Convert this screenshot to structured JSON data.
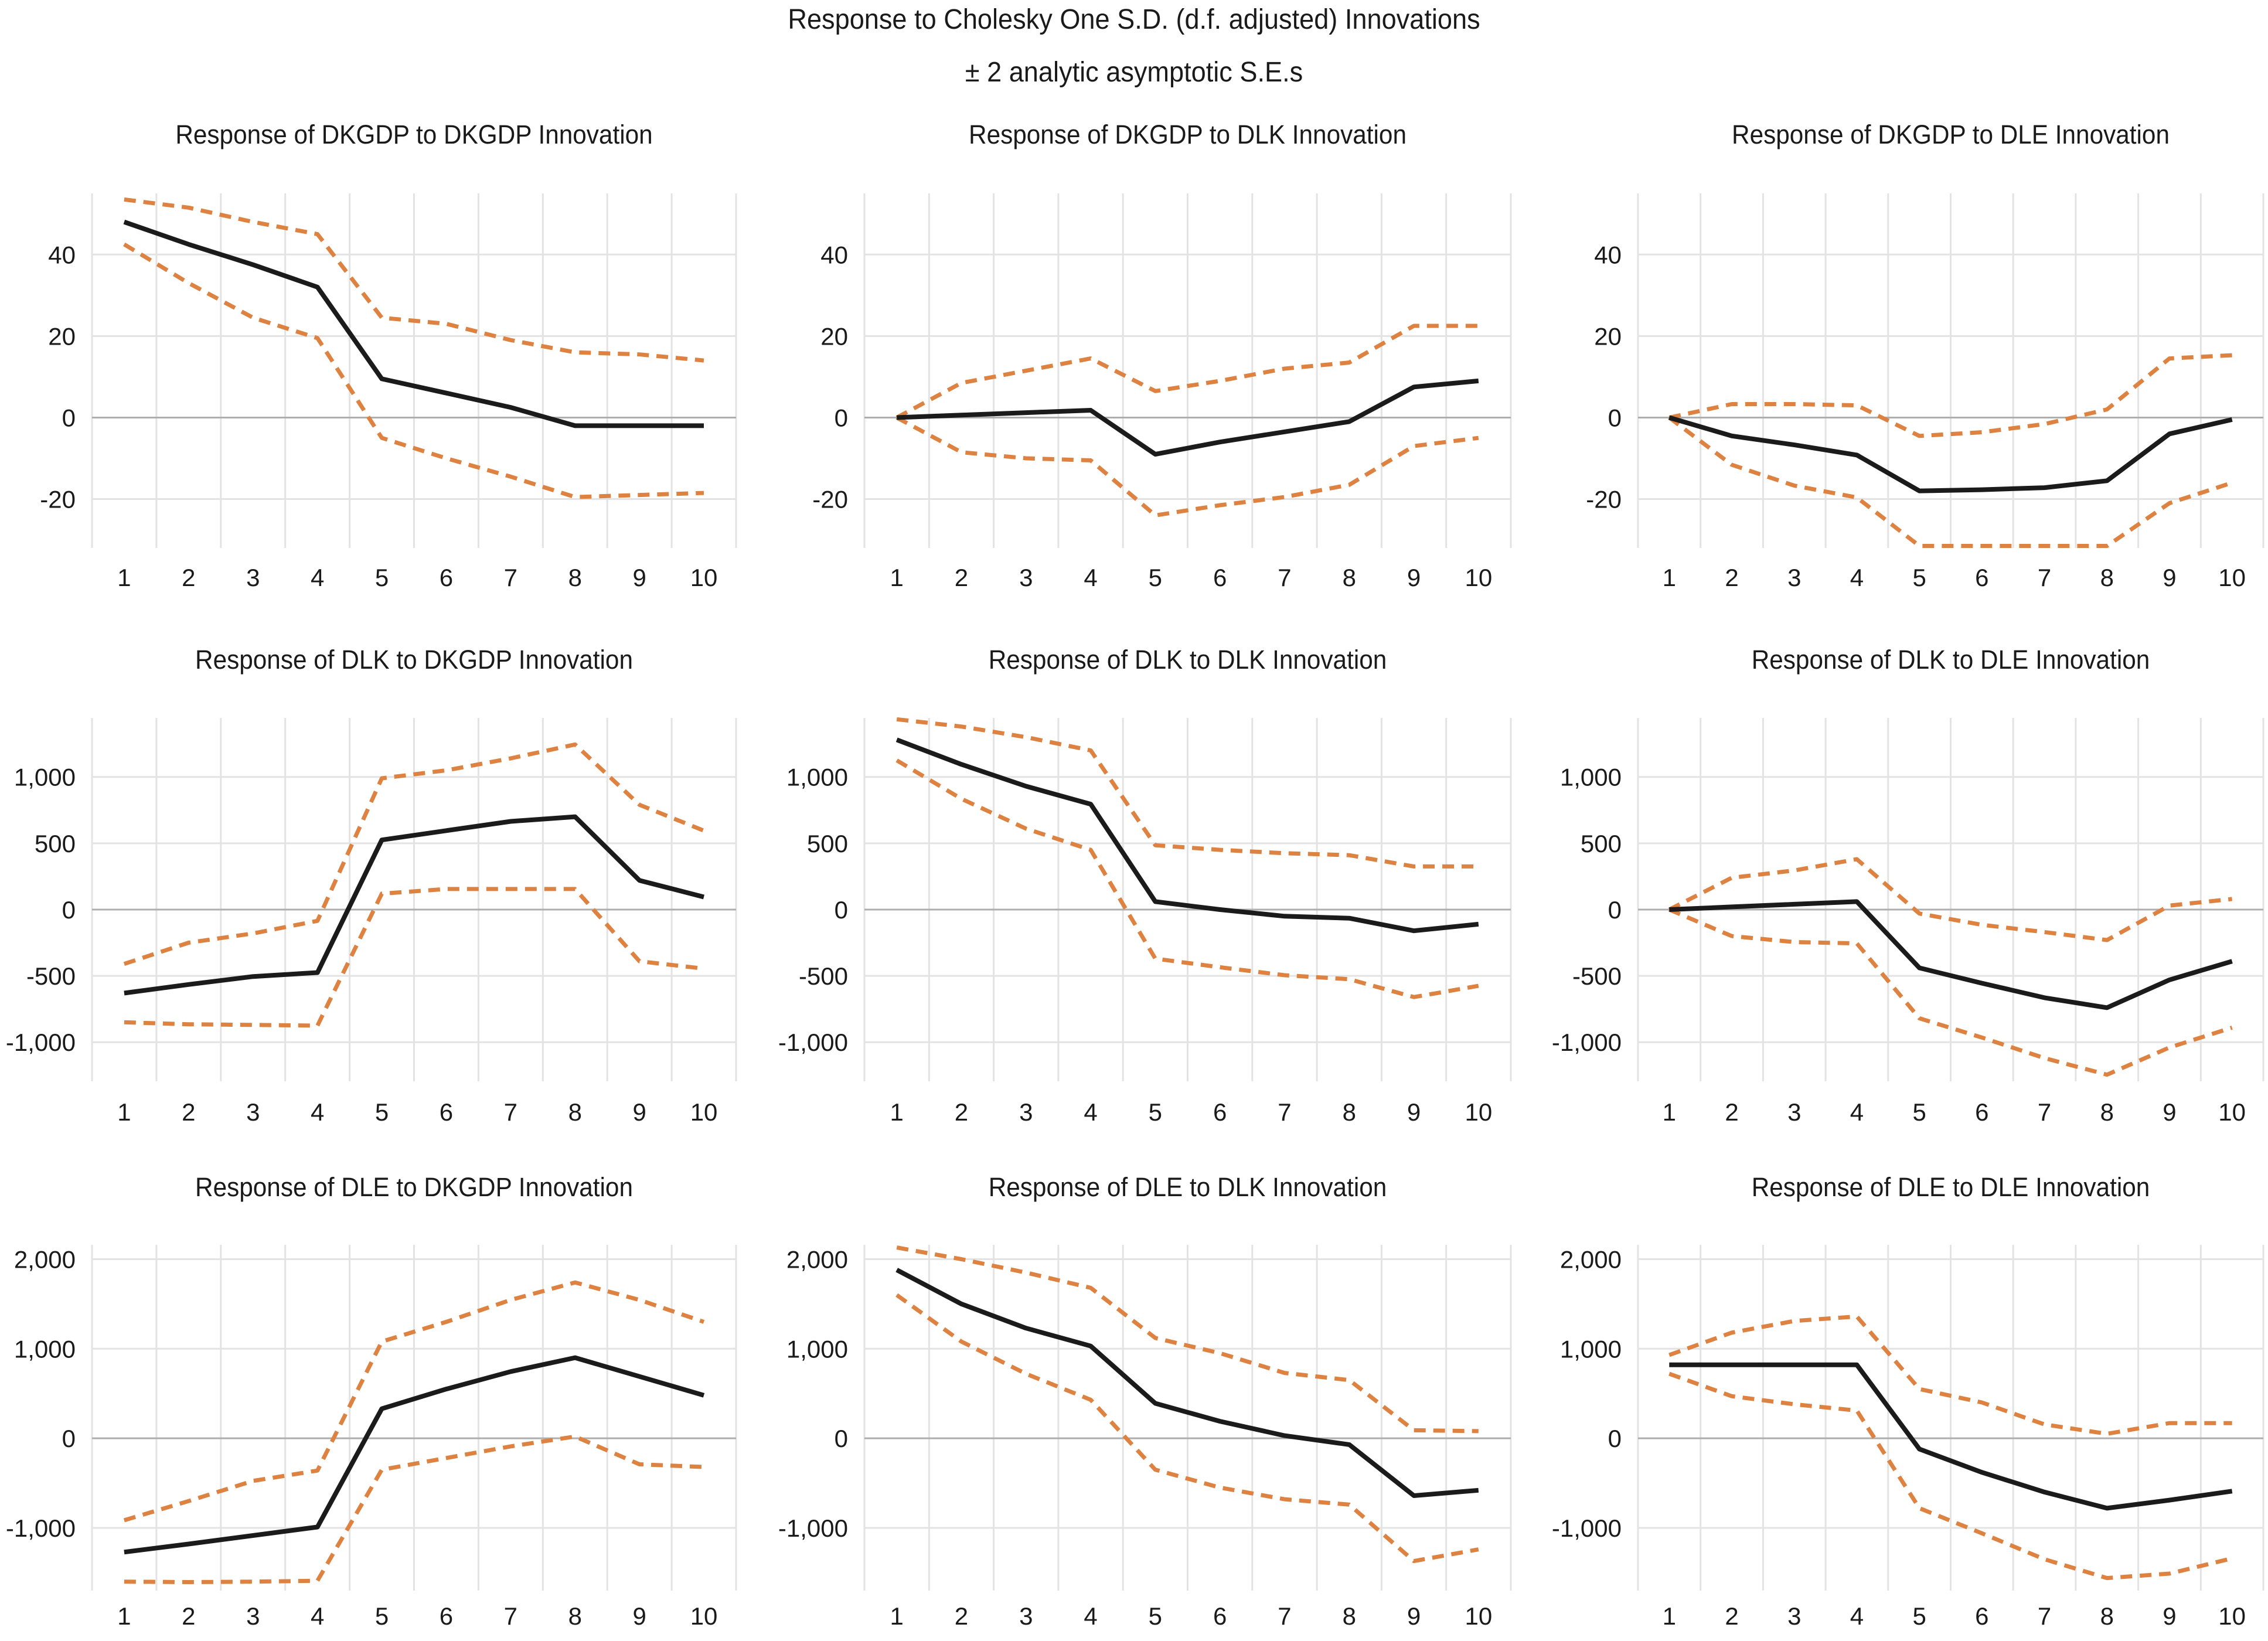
{
  "title": {
    "line1": "Response to Cholesky One S.D. (d.f. adjusted) Innovations",
    "line2": "± 2 analytic asymptotic S.E.s"
  },
  "colors": {
    "mean_line": "#1b1b1b",
    "band_line": "#dd8240",
    "gridline": "#e3e3e3",
    "zero_line": "#aeaeae",
    "background": "#ffffff",
    "text": "#1a1a1a"
  },
  "chart_data": {
    "type": "line",
    "x": [
      1,
      2,
      3,
      4,
      5,
      6,
      7,
      8,
      9,
      10
    ],
    "legend": "none",
    "grid": "on",
    "band_style": "dashed",
    "charts": [
      {
        "title": "Response of DKGDP to DKGDP Innovation",
        "ylim": [
          -32,
          55
        ],
        "ytick_values": [
          40,
          20,
          0,
          -20
        ],
        "ytick_labels": [
          "40",
          "20",
          "0",
          "-20"
        ],
        "series": [
          {
            "name": "response",
            "values": [
              48,
              42.5,
              37.5,
              32,
              9.5,
              6,
              2.5,
              -2,
              -2,
              -2
            ]
          },
          {
            "name": "upper_band",
            "values": [
              53.5,
              51.5,
              48,
              45,
              24.5,
              23,
              19,
              16,
              15.5,
              14
            ]
          },
          {
            "name": "lower_band",
            "values": [
              42.5,
              33,
              24.5,
              19.5,
              -5,
              -10,
              -14.5,
              -19.5,
              -19,
              -18.5
            ]
          }
        ]
      },
      {
        "title": "Response of DKGDP to DLK Innovation",
        "ylim": [
          -32,
          55
        ],
        "ytick_values": [
          40,
          20,
          0,
          -20
        ],
        "ytick_labels": [
          "40",
          "20",
          "0",
          "-20"
        ],
        "series": [
          {
            "name": "response",
            "values": [
              0,
              0.6,
              1.2,
              1.8,
              -9,
              -6,
              -3.5,
              -1,
              7.5,
              9
            ]
          },
          {
            "name": "upper_band",
            "values": [
              0,
              8.5,
              11.5,
              14.5,
              6.5,
              9,
              12,
              13.5,
              22.5,
              22.5
            ]
          },
          {
            "name": "lower_band",
            "values": [
              0,
              -8.5,
              -10,
              -10.5,
              -24,
              -21.5,
              -19.5,
              -16.5,
              -7,
              -5
            ]
          }
        ]
      },
      {
        "title": "Response of DKGDP to DLE Innovation",
        "ylim": [
          -32,
          55
        ],
        "ytick_values": [
          40,
          20,
          0,
          -20
        ],
        "ytick_labels": [
          "40",
          "20",
          "0",
          "-20"
        ],
        "series": [
          {
            "name": "response",
            "values": [
              0,
              -4.5,
              -6.7,
              -9.2,
              -18,
              -17.7,
              -17.2,
              -15.5,
              -4,
              -0.5
            ]
          },
          {
            "name": "upper_band",
            "values": [
              0,
              3.3,
              3.3,
              3,
              -4.5,
              -3.6,
              -1.6,
              2,
              14.5,
              15.3
            ]
          },
          {
            "name": "lower_band",
            "values": [
              0,
              -11.6,
              -16.7,
              -19.6,
              -31.5,
              -31.5,
              -31.5,
              -31.5,
              -21,
              -16
            ]
          }
        ]
      },
      {
        "title": "Response of DLK to DKGDP Innovation",
        "ylim": [
          -1295,
          1445
        ],
        "ytick_values": [
          1000,
          500,
          0,
          -500,
          -1000
        ],
        "ytick_labels": [
          "1,000",
          "500",
          "0",
          "-500",
          "-1,000"
        ],
        "series": [
          {
            "name": "response",
            "values": [
              -630,
              -565,
              -505,
              -475,
              525,
              595,
              665,
              700,
              220,
              95
            ]
          },
          {
            "name": "upper_band",
            "values": [
              -410,
              -250,
              -180,
              -85,
              990,
              1050,
              1140,
              1245,
              790,
              595
            ]
          },
          {
            "name": "lower_band",
            "values": [
              -850,
              -865,
              -870,
              -875,
              120,
              155,
              155,
              155,
              -390,
              -445
            ]
          }
        ]
      },
      {
        "title": "Response of DLK to DLK Innovation",
        "ylim": [
          -1295,
          1445
        ],
        "ytick_values": [
          1000,
          500,
          0,
          -500,
          -1000
        ],
        "ytick_labels": [
          "1,000",
          "500",
          "0",
          "-500",
          "-1,000"
        ],
        "series": [
          {
            "name": "response",
            "values": [
              1280,
              1095,
              930,
              795,
              60,
              0,
              -50,
              -65,
              -160,
              -110
            ]
          },
          {
            "name": "upper_band",
            "values": [
              1435,
              1380,
              1300,
              1200,
              485,
              450,
              425,
              410,
              325,
              325
            ]
          },
          {
            "name": "lower_band",
            "values": [
              1125,
              835,
              610,
              450,
              -370,
              -435,
              -495,
              -525,
              -660,
              -575
            ]
          }
        ]
      },
      {
        "title": "Response of DLK to DLE Innovation",
        "ylim": [
          -1295,
          1445
        ],
        "ytick_values": [
          1000,
          500,
          0,
          -500,
          -1000
        ],
        "ytick_labels": [
          "1,000",
          "500",
          "0",
          "-500",
          "-1,000"
        ],
        "series": [
          {
            "name": "response",
            "values": [
              0,
              20,
              40,
              60,
              -440,
              -555,
              -665,
              -740,
              -530,
              -390
            ]
          },
          {
            "name": "upper_band",
            "values": [
              0,
              240,
              295,
              380,
              -30,
              -115,
              -170,
              -230,
              30,
              80
            ]
          },
          {
            "name": "lower_band",
            "values": [
              0,
              -200,
              -245,
              -255,
              -820,
              -965,
              -1120,
              -1245,
              -1040,
              -890
            ]
          }
        ]
      },
      {
        "title": "Response of DLE to DKGDP Innovation",
        "ylim": [
          -1700,
          2160
        ],
        "ytick_values": [
          2000,
          1000,
          0,
          -1000
        ],
        "ytick_labels": [
          "2,000",
          "1,000",
          "0",
          "-1,000"
        ],
        "series": [
          {
            "name": "response",
            "values": [
              -1270,
              -1180,
              -1085,
              -990,
              330,
              550,
              745,
              900,
              690,
              480
            ]
          },
          {
            "name": "upper_band",
            "values": [
              -915,
              -700,
              -475,
              -360,
              1080,
              1300,
              1545,
              1740,
              1545,
              1300
            ]
          },
          {
            "name": "lower_band",
            "values": [
              -1600,
              -1605,
              -1600,
              -1590,
              -350,
              -220,
              -90,
              20,
              -290,
              -320
            ]
          }
        ]
      },
      {
        "title": "Response of DLE to DLK Innovation",
        "ylim": [
          -1700,
          2160
        ],
        "ytick_values": [
          2000,
          1000,
          0,
          -1000
        ],
        "ytick_labels": [
          "2,000",
          "1,000",
          "0",
          "-1,000"
        ],
        "series": [
          {
            "name": "response",
            "values": [
              1880,
              1500,
              1230,
              1030,
              390,
              190,
              30,
              -70,
              -640,
              -580
            ]
          },
          {
            "name": "upper_band",
            "values": [
              2130,
              2000,
              1850,
              1680,
              1120,
              950,
              730,
              650,
              90,
              80
            ]
          },
          {
            "name": "lower_band",
            "values": [
              1600,
              1080,
              720,
              430,
              -350,
              -550,
              -680,
              -740,
              -1370,
              -1240
            ]
          }
        ]
      },
      {
        "title": "Response of DLE to DLE Innovation",
        "ylim": [
          -1700,
          2160
        ],
        "ytick_values": [
          2000,
          1000,
          0,
          -1000
        ],
        "ytick_labels": [
          "2,000",
          "1,000",
          "0",
          "-1,000"
        ],
        "series": [
          {
            "name": "response",
            "values": [
              820,
              820,
              820,
              820,
              -120,
              -380,
              -600,
              -780,
              -690,
              -590
            ]
          },
          {
            "name": "upper_band",
            "values": [
              930,
              1180,
              1310,
              1360,
              550,
              400,
              155,
              50,
              170,
              170
            ]
          },
          {
            "name": "lower_band",
            "values": [
              720,
              470,
              380,
              310,
              -780,
              -1060,
              -1350,
              -1560,
              -1510,
              -1340
            ]
          }
        ]
      }
    ]
  }
}
